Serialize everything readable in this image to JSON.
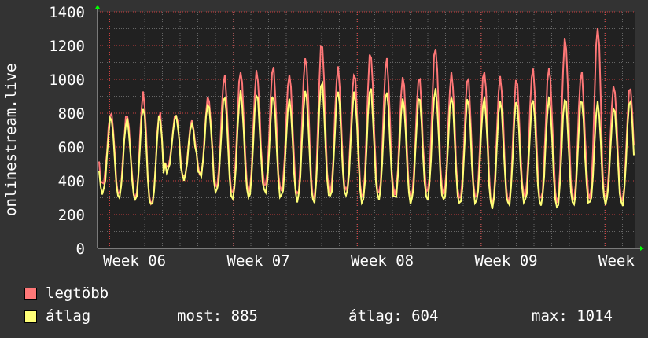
{
  "chart_data": {
    "type": "line",
    "ylabel": "onlinestream.live",
    "ylim": [
      0,
      1400
    ],
    "y_ticks": [
      "0",
      "200",
      "400",
      "600",
      "800",
      "1000",
      "1200",
      "1400"
    ],
    "x_ticks": [
      "Week 06",
      "Week 07",
      "Week 08",
      "Week 09",
      "Week"
    ],
    "grid": true,
    "background": "#212121",
    "series": [
      {
        "name": "legtöbb",
        "color": "#ff7777",
        "daily_peaks": [
          810,
          800,
          910,
          800,
          800,
          760,
          890,
          1020,
          1060,
          1050,
          1070,
          1030,
          1140,
          1220,
          1060,
          1040,
          1170,
          1120,
          1010,
          1020,
          1200,
          1030,
          1010,
          1060,
          1020,
          1000,
          1060,
          1080,
          1250,
          1040,
          1310,
          970,
          960
        ],
        "daily_troughs": [
          380,
          330,
          300,
          260,
          480,
          430,
          440,
          360,
          330,
          340,
          370,
          340,
          320,
          300,
          330,
          340,
          310,
          330,
          320,
          300,
          340,
          330,
          290,
          300,
          270,
          280,
          300,
          290,
          280,
          290,
          290,
          300,
          290
        ]
      },
      {
        "name": "átlag",
        "color": "#ffff77",
        "daily_peaks": [
          780,
          770,
          830,
          780,
          790,
          740,
          850,
          900,
          930,
          920,
          900,
          880,
          940,
          990,
          930,
          920,
          960,
          930,
          880,
          900,
          950,
          900,
          880,
          890,
          880,
          870,
          880,
          890,
          900,
          880,
          860,
          840,
          885
        ],
        "daily_troughs": [
          330,
          310,
          290,
          250,
          460,
          420,
          430,
          330,
          300,
          310,
          330,
          300,
          290,
          280,
          300,
          310,
          280,
          300,
          290,
          270,
          300,
          290,
          260,
          270,
          250,
          260,
          270,
          260,
          250,
          260,
          260,
          270,
          265
        ]
      }
    ]
  },
  "legend": {
    "max_label": "legtöbb",
    "avg_label": "átlag",
    "stats": {
      "now": "most: 885",
      "avg": "átlag: 604",
      "max": "max: 1014"
    }
  },
  "colors": {
    "page": "#333333",
    "plot": "#212121",
    "axis": "#c0c0c0",
    "grid_major": "#d04040",
    "grid_minor": "#666666",
    "arrow": "#00ff00"
  }
}
